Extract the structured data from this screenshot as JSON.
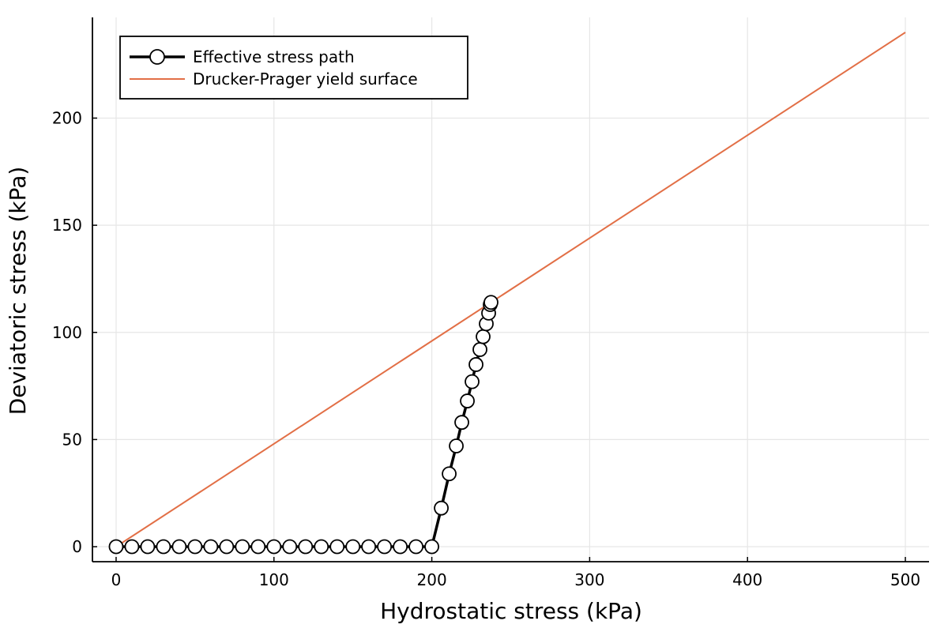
{
  "chart_data": {
    "type": "line",
    "title": "",
    "xlabel": "Hydrostatic stress (kPa)",
    "ylabel": "Deviatoric stress (kPa)",
    "xlim": [
      -15,
      515
    ],
    "ylim": [
      -7,
      247
    ],
    "xticks": [
      0,
      100,
      200,
      300,
      400,
      500
    ],
    "yticks": [
      0,
      50,
      100,
      150,
      200
    ],
    "grid": true,
    "legend_position": "top-left",
    "series": [
      {
        "name": "Effective stress path",
        "color": "#000000",
        "marker": "circle",
        "x": [
          0,
          10,
          20,
          30,
          40,
          50,
          60,
          70,
          80,
          90,
          100,
          110,
          120,
          130,
          140,
          150,
          160,
          170,
          180,
          190,
          200,
          206,
          211,
          215.5,
          219,
          222.5,
          225.5,
          228,
          230.5,
          232.5,
          234.5,
          236,
          237,
          237.5
        ],
        "y": [
          0,
          0,
          0,
          0,
          0,
          0,
          0,
          0,
          0,
          0,
          0,
          0,
          0,
          0,
          0,
          0,
          0,
          0,
          0,
          0,
          0,
          18,
          34,
          47,
          58,
          68,
          77,
          85,
          92,
          98,
          104,
          109,
          113,
          114
        ]
      },
      {
        "name": "Drucker-Prager yield surface",
        "color": "#e26f46",
        "marker": "none",
        "x": [
          0,
          500
        ],
        "y": [
          0,
          240
        ]
      }
    ]
  }
}
